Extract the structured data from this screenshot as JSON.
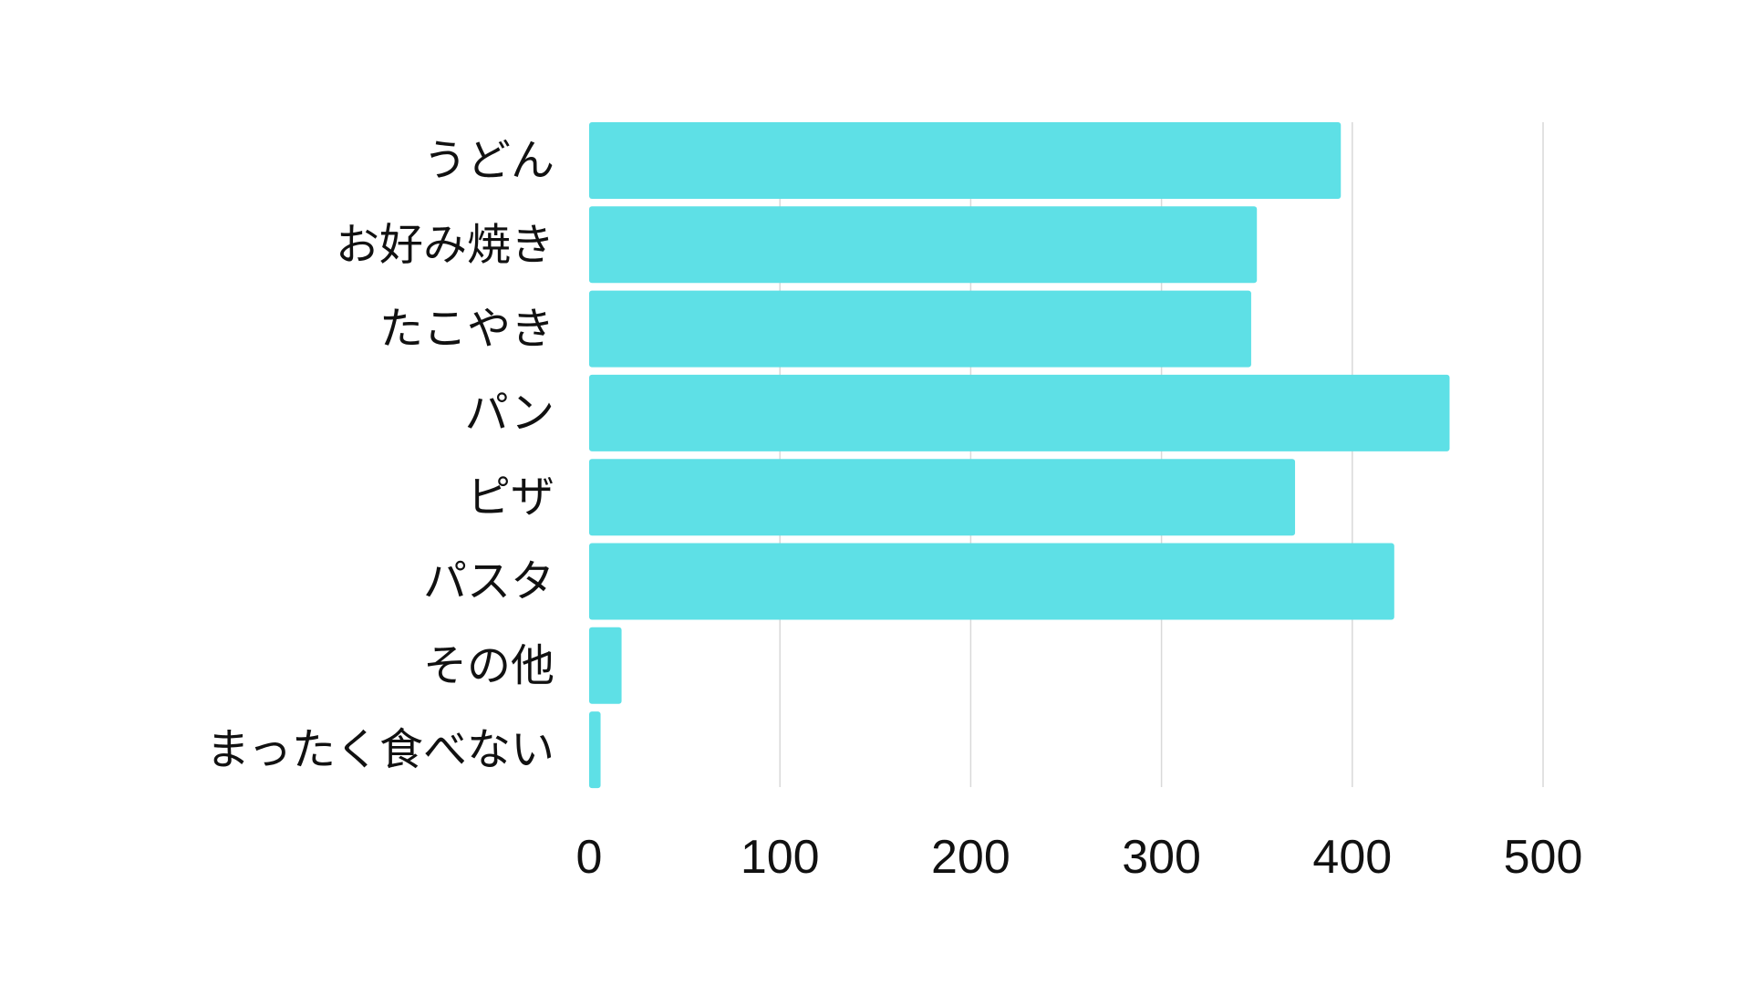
{
  "chart_data": {
    "type": "bar",
    "orientation": "horizontal",
    "categories": [
      "うどん",
      "お好み焼き",
      "たこやき",
      "パン",
      "ピザ",
      "パスタ",
      "その他",
      "まったく食べない"
    ],
    "values": [
      394,
      350,
      347,
      451,
      370,
      422,
      17,
      6
    ],
    "xlim": [
      0,
      500
    ],
    "xticks": [
      0,
      100,
      200,
      300,
      400,
      500
    ],
    "xtick_labels": [
      "0",
      "100",
      "200",
      "300",
      "400",
      "500"
    ],
    "grid": "vertical",
    "bar_color": "#5ee0e6",
    "title": "",
    "xlabel": "",
    "ylabel": ""
  }
}
